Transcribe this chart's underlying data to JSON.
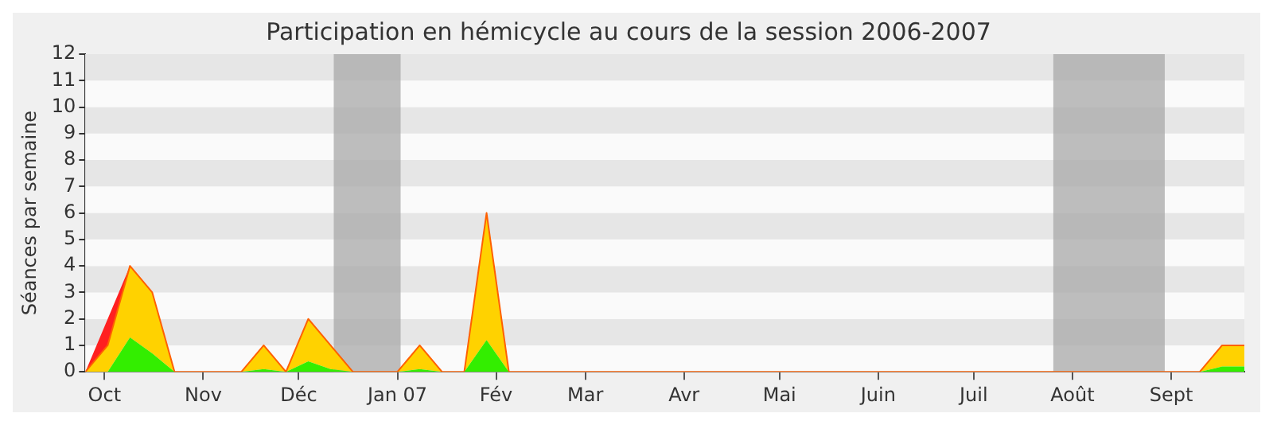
{
  "chart_data": {
    "type": "area",
    "title": "Participation en hémicycle au cours de la session 2006-2007",
    "ylabel": "Séances par semaine",
    "x": [
      "2006-09-25",
      "2006-10-02",
      "2006-10-09",
      "2006-10-16",
      "2006-10-23",
      "2006-10-30",
      "2006-11-06",
      "2006-11-13",
      "2006-11-20",
      "2006-11-27",
      "2006-12-04",
      "2006-12-11",
      "2006-12-18",
      "2006-12-25",
      "2007-01-01",
      "2007-01-08",
      "2007-01-15",
      "2007-01-22",
      "2007-01-29",
      "2007-02-05",
      "2007-02-12",
      "2007-02-19",
      "2007-02-26",
      "2007-03-05",
      "2007-03-12",
      "2007-03-19",
      "2007-03-26",
      "2007-04-02",
      "2007-04-09",
      "2007-04-16",
      "2007-04-23",
      "2007-04-30",
      "2007-05-07",
      "2007-05-14",
      "2007-05-21",
      "2007-05-28",
      "2007-06-04",
      "2007-06-11",
      "2007-06-18",
      "2007-06-25",
      "2007-07-02",
      "2007-07-09",
      "2007-07-16",
      "2007-07-23",
      "2007-07-30",
      "2007-08-06",
      "2007-08-13",
      "2007-08-20",
      "2007-08-27",
      "2007-09-03",
      "2007-09-10",
      "2007-09-17",
      "2007-09-24"
    ],
    "stacked": true,
    "series": [
      {
        "color": "#33ee00",
        "values": [
          0,
          0,
          1.3,
          0.7,
          0,
          0,
          0,
          0,
          0.1,
          0,
          0.4,
          0.1,
          0,
          0,
          0,
          0.1,
          0,
          0,
          1.2,
          0,
          0,
          0,
          0,
          0,
          0,
          0,
          0,
          0,
          0,
          0,
          0,
          0,
          0,
          0,
          0,
          0,
          0,
          0,
          0,
          0,
          0,
          0,
          0,
          0,
          0,
          0,
          0,
          0,
          0,
          0,
          0,
          0.2,
          0.2
        ]
      },
      {
        "color": "#ffd200",
        "values": [
          0,
          1,
          2.7,
          2.3,
          0,
          0,
          0,
          0,
          0.9,
          0,
          1.6,
          0.9,
          0,
          0,
          0,
          0.9,
          0,
          0,
          4.8,
          0,
          0,
          0,
          0,
          0,
          0,
          0,
          0,
          0,
          0,
          0,
          0,
          0,
          0,
          0,
          0,
          0,
          0,
          0,
          0,
          0,
          0,
          0,
          0,
          0,
          0,
          0,
          0,
          0,
          0,
          0,
          0,
          0.8,
          0.8
        ]
      },
      {
        "color": "#ff2020",
        "values": [
          0,
          1,
          0,
          null,
          null,
          null,
          null,
          null,
          null,
          null,
          null,
          null,
          null,
          null,
          null,
          null,
          null,
          null,
          null,
          null,
          null,
          null,
          null,
          null,
          null,
          null,
          null,
          null,
          null,
          null,
          null,
          null,
          null,
          null,
          null,
          null,
          null,
          null,
          null,
          null,
          null,
          null,
          null,
          null,
          null,
          null,
          null,
          null,
          null,
          null,
          null,
          null,
          null
        ]
      }
    ],
    "xlim": [
      "2006-09-25",
      "2007-09-24"
    ],
    "xticks": [
      {
        "value": "2006-10-01",
        "label": "Oct"
      },
      {
        "value": "2006-11-01",
        "label": "Nov"
      },
      {
        "value": "2006-12-01",
        "label": "Déc"
      },
      {
        "value": "2007-01-01",
        "label": "Jan 07"
      },
      {
        "value": "2007-02-01",
        "label": "Fév"
      },
      {
        "value": "2007-03-01",
        "label": "Mar"
      },
      {
        "value": "2007-04-01",
        "label": "Avr"
      },
      {
        "value": "2007-05-01",
        "label": "Mai"
      },
      {
        "value": "2007-06-01",
        "label": "Juin"
      },
      {
        "value": "2007-07-01",
        "label": "Juil"
      },
      {
        "value": "2007-08-01",
        "label": "Août"
      },
      {
        "value": "2007-09-01",
        "label": "Sept"
      }
    ],
    "ylim": [
      0,
      12
    ],
    "yticks": [
      0,
      1,
      2,
      3,
      4,
      5,
      6,
      7,
      8,
      9,
      10,
      11,
      12
    ],
    "bands": [
      {
        "axis": "x",
        "from": "2006-12-12",
        "to": "2007-01-02",
        "color": "#a8a8a8"
      },
      {
        "axis": "x",
        "from": "2007-07-26",
        "to": "2007-08-30",
        "color": "#a8a8a8"
      }
    ],
    "legend": false
  }
}
